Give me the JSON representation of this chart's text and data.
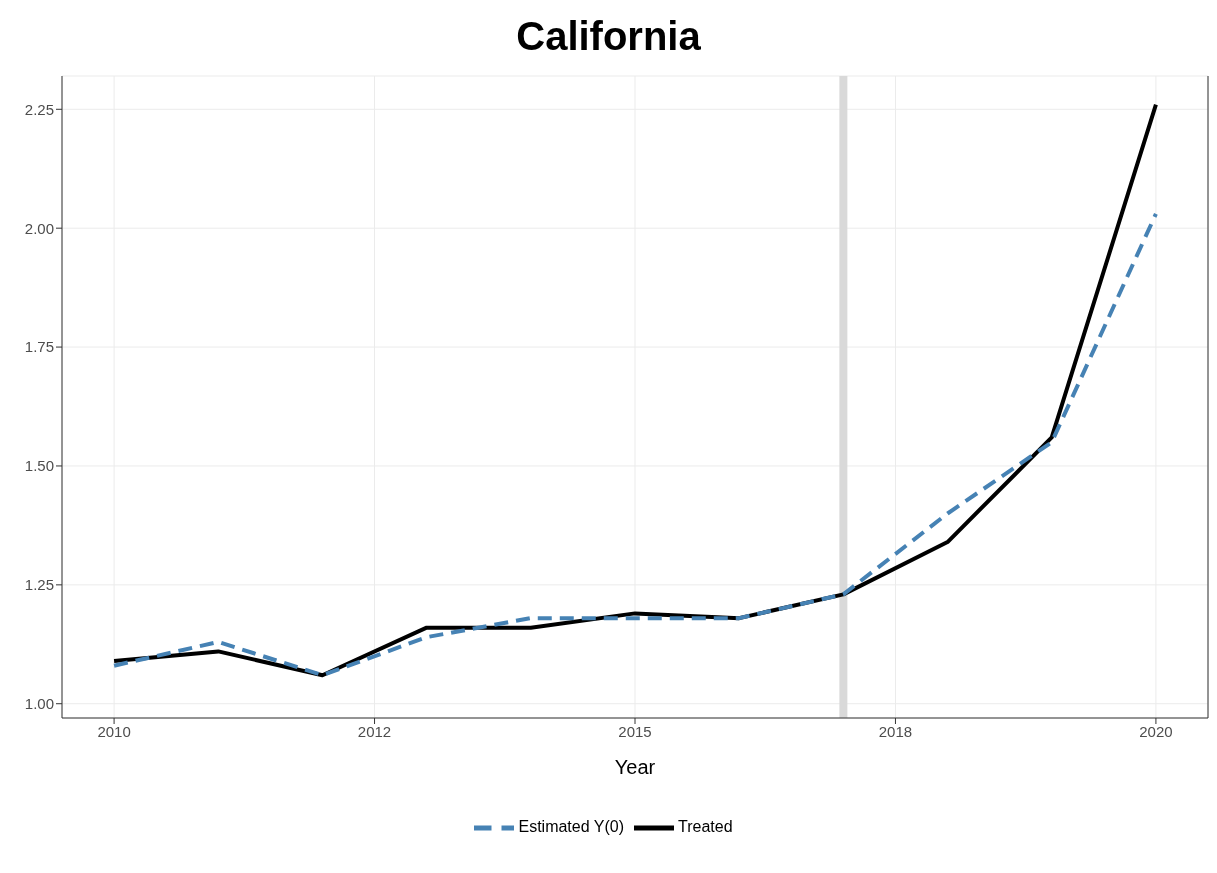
{
  "chart_data": {
    "type": "line",
    "title": "California",
    "xlabel": "Year",
    "x": [
      2010,
      2011,
      2012,
      2013,
      2014,
      2015,
      2016,
      2017,
      2018,
      2019,
      2020
    ],
    "series": [
      {
        "name": "Treated",
        "color": "#000000",
        "line_style": "solid",
        "values": [
          1.09,
          1.11,
          1.06,
          1.16,
          1.16,
          1.19,
          1.18,
          1.23,
          1.34,
          1.56,
          2.26
        ]
      },
      {
        "name": "Estimated Y(0)",
        "color": "#4682b4",
        "line_style": "dashed",
        "values": [
          1.08,
          1.13,
          1.06,
          1.14,
          1.18,
          1.18,
          1.18,
          1.23,
          1.4,
          1.55,
          2.03
        ]
      }
    ],
    "xlim": [
      2009.5,
      2020.5
    ],
    "xticks": [
      2010,
      {
        "value": 2012.5,
        "label": "2012"
      },
      2015,
      {
        "value": 2017.5,
        "label": "2018"
      },
      2020
    ],
    "ylim": [
      0.97,
      2.32
    ],
    "yticks": [
      {
        "value": 1,
        "label": "1.00"
      },
      {
        "value": 1.25,
        "label": "1.25"
      },
      {
        "value": 1.5,
        "label": "1.50"
      },
      {
        "value": 1.75,
        "label": "1.75"
      },
      {
        "value": 2,
        "label": "2.00"
      },
      {
        "value": 2.25,
        "label": "2.25"
      }
    ],
    "ref_lines": [
      {
        "axis": "x",
        "value": 2017,
        "color": "#d9d9d9"
      }
    ],
    "grid": true,
    "legend": "bottom",
    "marker": "none"
  }
}
